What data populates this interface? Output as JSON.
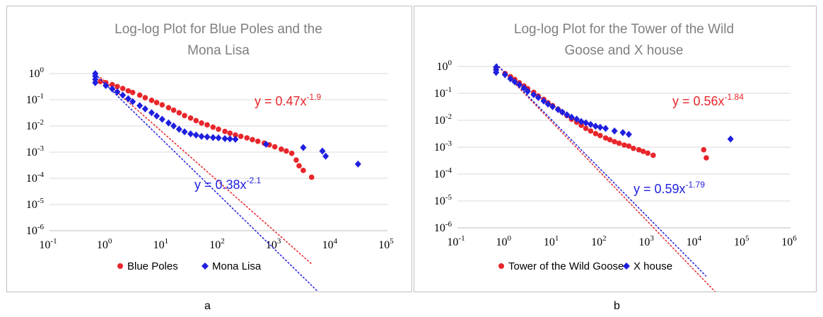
{
  "colors": {
    "red": "#e8262b",
    "blue": "#1f1fe0",
    "grid": "#d9d9d9"
  },
  "panel_labels": [
    "a",
    "b"
  ],
  "chart_data": [
    {
      "type": "scatter",
      "scale": "log-log",
      "title_lines": [
        "Log-log Plot for Blue Poles and the",
        "Mona Lisa"
      ],
      "xlim_exp": [
        -1,
        5
      ],
      "ylim_exp": [
        -6,
        0
      ],
      "x_ticks": [
        {
          "b": "10",
          "e": "-1"
        },
        {
          "b": "10",
          "e": "0"
        },
        {
          "b": "10",
          "e": "1"
        },
        {
          "b": "10",
          "e": "2"
        },
        {
          "b": "10",
          "e": "3"
        },
        {
          "b": "10",
          "e": "4"
        },
        {
          "b": "10",
          "e": "5"
        }
      ],
      "y_ticks": [
        {
          "b": "10",
          "e": "0"
        },
        {
          "b": "10",
          "e": "-1"
        },
        {
          "b": "10",
          "e": "-2"
        },
        {
          "b": "10",
          "e": "-3"
        },
        {
          "b": "10",
          "e": "-4"
        },
        {
          "b": "10",
          "e": "-5"
        },
        {
          "b": "10",
          "e": "-6"
        }
      ],
      "legend": [
        "Blue Poles",
        "Mona Lisa"
      ],
      "series": [
        {
          "name": "Blue Poles",
          "color": "red",
          "marker": "circle",
          "points": [
            [
              0.8,
              0.5
            ],
            [
              1,
              0.45
            ],
            [
              1.3,
              0.38
            ],
            [
              1.6,
              0.32
            ],
            [
              2,
              0.27
            ],
            [
              2.5,
              0.22
            ],
            [
              3,
              0.19
            ],
            [
              4,
              0.15
            ],
            [
              5,
              0.12
            ],
            [
              6.5,
              0.095
            ],
            [
              8,
              0.078
            ],
            [
              10,
              0.064
            ],
            [
              13,
              0.05
            ],
            [
              16,
              0.04
            ],
            [
              20,
              0.032
            ],
            [
              25,
              0.025
            ],
            [
              32,
              0.02
            ],
            [
              40,
              0.016
            ],
            [
              50,
              0.013
            ],
            [
              63,
              0.011
            ],
            [
              80,
              0.009
            ],
            [
              100,
              0.0075
            ],
            [
              130,
              0.0062
            ],
            [
              160,
              0.0053
            ],
            [
              200,
              0.0045
            ],
            [
              250,
              0.004
            ],
            [
              320,
              0.0035
            ],
            [
              400,
              0.003
            ],
            [
              500,
              0.0026
            ],
            [
              650,
              0.0022
            ],
            [
              800,
              0.0019
            ],
            [
              1000,
              0.0016
            ],
            [
              1300,
              0.0013
            ],
            [
              1600,
              0.0011
            ],
            [
              2000,
              0.0009
            ],
            [
              2400,
              0.0005
            ],
            [
              2700,
              0.0003
            ],
            [
              3200,
              0.0002
            ],
            [
              4500,
              0.00011
            ]
          ],
          "fit": {
            "label": "y = 0.47x",
            "exp": "-1.9",
            "coef": 0.47,
            "power": -1.9,
            "x_range": [
              0.8,
              4500
            ]
          }
        },
        {
          "name": "Mona Lisa",
          "color": "blue",
          "marker": "diamond",
          "points": [
            [
              0.65,
              1
            ],
            [
              0.65,
              0.8
            ],
            [
              0.65,
              0.6
            ],
            [
              0.65,
              0.45
            ],
            [
              1,
              0.35
            ],
            [
              1.3,
              0.26
            ],
            [
              1.6,
              0.2
            ],
            [
              2,
              0.15
            ],
            [
              2.5,
              0.11
            ],
            [
              3,
              0.085
            ],
            [
              4,
              0.06
            ],
            [
              5,
              0.045
            ],
            [
              6.5,
              0.032
            ],
            [
              8,
              0.024
            ],
            [
              10,
              0.018
            ],
            [
              13,
              0.013
            ],
            [
              16,
              0.01
            ],
            [
              20,
              0.0075
            ],
            [
              25,
              0.006
            ],
            [
              32,
              0.005
            ],
            [
              40,
              0.0045
            ],
            [
              50,
              0.004
            ],
            [
              63,
              0.0038
            ],
            [
              80,
              0.0036
            ],
            [
              100,
              0.0035
            ],
            [
              130,
              0.0033
            ],
            [
              160,
              0.0032
            ],
            [
              200,
              0.0031
            ],
            [
              700,
              0.002
            ],
            [
              3200,
              0.0015
            ],
            [
              7000,
              0.0011
            ],
            [
              8000,
              0.0007
            ],
            [
              30000,
              0.00035
            ]
          ],
          "fit": {
            "label": "y = 0.38x",
            "exp": "-2.1",
            "coef": 0.38,
            "power": -2.1,
            "x_range": [
              0.65,
              30000
            ]
          }
        }
      ]
    },
    {
      "type": "scatter",
      "scale": "log-log",
      "title_lines": [
        "Log-log Plot for the Tower of the Wild",
        "Goose and X house"
      ],
      "xlim_exp": [
        -1,
        6
      ],
      "ylim_exp": [
        -6,
        0
      ],
      "x_ticks": [
        {
          "b": "10",
          "e": "-1"
        },
        {
          "b": "10",
          "e": "0"
        },
        {
          "b": "10",
          "e": "1"
        },
        {
          "b": "10",
          "e": "2"
        },
        {
          "b": "10",
          "e": "3"
        },
        {
          "b": "10",
          "e": "4"
        },
        {
          "b": "10",
          "e": "5"
        },
        {
          "b": "10",
          "e": "6"
        }
      ],
      "y_ticks": [
        {
          "b": "10",
          "e": "0"
        },
        {
          "b": "10",
          "e": "-1"
        },
        {
          "b": "10",
          "e": "-2"
        },
        {
          "b": "10",
          "e": "-3"
        },
        {
          "b": "10",
          "e": "-4"
        },
        {
          "b": "10",
          "e": "-5"
        },
        {
          "b": "10",
          "e": "-6"
        }
      ],
      "legend": [
        "Tower of the Wild Goose",
        "X house"
      ],
      "series": [
        {
          "name": "Tower of the Wild Goose",
          "color": "red",
          "marker": "circle",
          "points": [
            [
              0.65,
              0.8
            ],
            [
              1,
              0.55
            ],
            [
              1.3,
              0.42
            ],
            [
              1.6,
              0.33
            ],
            [
              2,
              0.25
            ],
            [
              2.5,
              0.19
            ],
            [
              3,
              0.15
            ],
            [
              4,
              0.11
            ],
            [
              5,
              0.08
            ],
            [
              6.5,
              0.06
            ],
            [
              8,
              0.045
            ],
            [
              10,
              0.035
            ],
            [
              13,
              0.026
            ],
            [
              16,
              0.02
            ],
            [
              20,
              0.015
            ],
            [
              25,
              0.011
            ],
            [
              32,
              0.0085
            ],
            [
              40,
              0.0065
            ],
            [
              50,
              0.005
            ],
            [
              63,
              0.004
            ],
            [
              80,
              0.0032
            ],
            [
              100,
              0.0027
            ],
            [
              130,
              0.0022
            ],
            [
              160,
              0.0019
            ],
            [
              200,
              0.0016
            ],
            [
              250,
              0.0014
            ],
            [
              320,
              0.0012
            ],
            [
              400,
              0.0011
            ],
            [
              500,
              0.0009
            ],
            [
              650,
              0.0008
            ],
            [
              800,
              0.0007
            ],
            [
              1000,
              0.0006
            ],
            [
              1300,
              0.0005
            ],
            [
              15000,
              0.0008
            ],
            [
              17000,
              0.0004
            ]
          ],
          "fit": {
            "label": "y = 0.56x",
            "exp": "-1.84",
            "coef": 0.56,
            "power": -1.84,
            "x_range": [
              0.65,
              50000
            ]
          }
        },
        {
          "name": "X house",
          "color": "blue",
          "marker": "diamond",
          "points": [
            [
              0.65,
              0.95
            ],
            [
              0.65,
              0.75
            ],
            [
              0.65,
              0.6
            ],
            [
              1,
              0.5
            ],
            [
              1.3,
              0.35
            ],
            [
              1.6,
              0.27
            ],
            [
              2,
              0.21
            ],
            [
              2.5,
              0.16
            ],
            [
              3,
              0.12
            ],
            [
              4,
              0.09
            ],
            [
              5,
              0.07
            ],
            [
              6.5,
              0.052
            ],
            [
              8,
              0.04
            ],
            [
              10,
              0.032
            ],
            [
              13,
              0.025
            ],
            [
              16,
              0.02
            ],
            [
              20,
              0.016
            ],
            [
              25,
              0.013
            ],
            [
              32,
              0.011
            ],
            [
              40,
              0.009
            ],
            [
              50,
              0.008
            ],
            [
              63,
              0.007
            ],
            [
              80,
              0.006
            ],
            [
              100,
              0.0055
            ],
            [
              130,
              0.005
            ],
            [
              200,
              0.004
            ],
            [
              300,
              0.0035
            ],
            [
              400,
              0.003
            ],
            [
              55000,
              0.002
            ]
          ],
          "fit": {
            "label": "y = 0.59x",
            "exp": "-1.79",
            "coef": 0.59,
            "power": -1.79,
            "x_range": [
              0.65,
              17000
            ]
          }
        }
      ]
    }
  ]
}
